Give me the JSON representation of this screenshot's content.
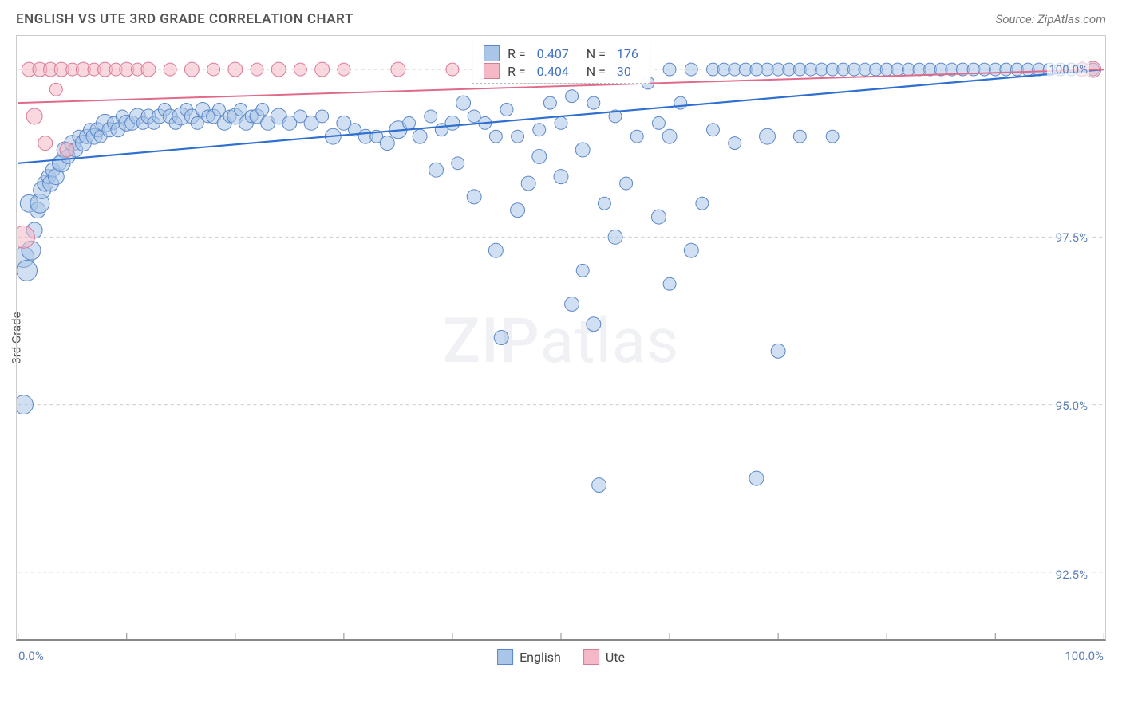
{
  "title": "ENGLISH VS UTE 3RD GRADE CORRELATION CHART",
  "source_label": "Source: ZipAtlas.com",
  "watermark": "ZIPatlas",
  "y_axis_title": "3rd Grade",
  "chart": {
    "type": "scatter",
    "xlim": [
      0,
      100
    ],
    "ylim": [
      91.5,
      100.5
    ],
    "y_ticks": [
      92.5,
      95.0,
      97.5,
      100.0
    ],
    "y_tick_labels": [
      "92.5%",
      "95.0%",
      "97.5%",
      "100.0%"
    ],
    "x_tick_positions": [
      0,
      10,
      20,
      30,
      40,
      50,
      60,
      70,
      80,
      90,
      100
    ],
    "x_axis_min_label": "0.0%",
    "x_axis_max_label": "100.0%",
    "background_color": "#ffffff",
    "grid_color": "#cccccc",
    "series": [
      {
        "name": "English",
        "fill": "#a9c5e8",
        "fill_opacity": 0.55,
        "stroke": "#5b87c7",
        "stroke_width": 1.0,
        "trend_color": "#2f6fd0",
        "trend_width": 2.2,
        "trend_y_start": 98.6,
        "trend_y_end": 100.0,
        "R": "0.407",
        "N": "176",
        "points": [
          {
            "x": 0.5,
            "y": 95.0,
            "r": 12
          },
          {
            "x": 0.5,
            "y": 97.2,
            "r": 13
          },
          {
            "x": 0.8,
            "y": 97.0,
            "r": 13
          },
          {
            "x": 1.0,
            "y": 98.0,
            "r": 11
          },
          {
            "x": 1.2,
            "y": 97.3,
            "r": 12
          },
          {
            "x": 1.5,
            "y": 97.6,
            "r": 10
          },
          {
            "x": 1.8,
            "y": 97.9,
            "r": 10
          },
          {
            "x": 2.0,
            "y": 98.0,
            "r": 12
          },
          {
            "x": 2.2,
            "y": 98.2,
            "r": 11
          },
          {
            "x": 2.5,
            "y": 98.3,
            "r": 10
          },
          {
            "x": 2.8,
            "y": 98.4,
            "r": 9
          },
          {
            "x": 3.0,
            "y": 98.3,
            "r": 10
          },
          {
            "x": 3.2,
            "y": 98.5,
            "r": 9
          },
          {
            "x": 3.5,
            "y": 98.4,
            "r": 10
          },
          {
            "x": 3.8,
            "y": 98.6,
            "r": 9
          },
          {
            "x": 4.0,
            "y": 98.6,
            "r": 11
          },
          {
            "x": 4.3,
            "y": 98.8,
            "r": 10
          },
          {
            "x": 4.6,
            "y": 98.7,
            "r": 9
          },
          {
            "x": 5.0,
            "y": 98.9,
            "r": 10
          },
          {
            "x": 5.3,
            "y": 98.8,
            "r": 9
          },
          {
            "x": 5.6,
            "y": 99.0,
            "r": 8
          },
          {
            "x": 6.0,
            "y": 98.9,
            "r": 10
          },
          {
            "x": 6.3,
            "y": 99.0,
            "r": 9
          },
          {
            "x": 6.6,
            "y": 99.1,
            "r": 8
          },
          {
            "x": 7.0,
            "y": 99.0,
            "r": 10
          },
          {
            "x": 7.3,
            "y": 99.1,
            "r": 9
          },
          {
            "x": 7.6,
            "y": 99.0,
            "r": 8
          },
          {
            "x": 8.0,
            "y": 99.2,
            "r": 11
          },
          {
            "x": 8.4,
            "y": 99.1,
            "r": 9
          },
          {
            "x": 8.8,
            "y": 99.2,
            "r": 8
          },
          {
            "x": 9.2,
            "y": 99.1,
            "r": 9
          },
          {
            "x": 9.6,
            "y": 99.3,
            "r": 8
          },
          {
            "x": 10.0,
            "y": 99.2,
            "r": 10
          },
          {
            "x": 10.5,
            "y": 99.2,
            "r": 9
          },
          {
            "x": 11.0,
            "y": 99.3,
            "r": 10
          },
          {
            "x": 11.5,
            "y": 99.2,
            "r": 8
          },
          {
            "x": 12.0,
            "y": 99.3,
            "r": 9
          },
          {
            "x": 12.5,
            "y": 99.2,
            "r": 8
          },
          {
            "x": 13.0,
            "y": 99.3,
            "r": 9
          },
          {
            "x": 13.5,
            "y": 99.4,
            "r": 8
          },
          {
            "x": 14.0,
            "y": 99.3,
            "r": 9
          },
          {
            "x": 14.5,
            "y": 99.2,
            "r": 8
          },
          {
            "x": 15.0,
            "y": 99.3,
            "r": 11
          },
          {
            "x": 15.5,
            "y": 99.4,
            "r": 8
          },
          {
            "x": 16.0,
            "y": 99.3,
            "r": 9
          },
          {
            "x": 16.5,
            "y": 99.2,
            "r": 8
          },
          {
            "x": 17.0,
            "y": 99.4,
            "r": 9
          },
          {
            "x": 17.5,
            "y": 99.3,
            "r": 8
          },
          {
            "x": 18.0,
            "y": 99.3,
            "r": 9
          },
          {
            "x": 18.5,
            "y": 99.4,
            "r": 8
          },
          {
            "x": 19.0,
            "y": 99.2,
            "r": 9
          },
          {
            "x": 19.5,
            "y": 99.3,
            "r": 8
          },
          {
            "x": 20.0,
            "y": 99.3,
            "r": 10
          },
          {
            "x": 20.5,
            "y": 99.4,
            "r": 8
          },
          {
            "x": 21.0,
            "y": 99.2,
            "r": 9
          },
          {
            "x": 21.5,
            "y": 99.3,
            "r": 8
          },
          {
            "x": 22.0,
            "y": 99.3,
            "r": 9
          },
          {
            "x": 22.5,
            "y": 99.4,
            "r": 8
          },
          {
            "x": 23.0,
            "y": 99.2,
            "r": 9
          },
          {
            "x": 24.0,
            "y": 99.3,
            "r": 10
          },
          {
            "x": 25.0,
            "y": 99.2,
            "r": 9
          },
          {
            "x": 26.0,
            "y": 99.3,
            "r": 8
          },
          {
            "x": 27.0,
            "y": 99.2,
            "r": 9
          },
          {
            "x": 28.0,
            "y": 99.3,
            "r": 8
          },
          {
            "x": 29.0,
            "y": 99.0,
            "r": 10
          },
          {
            "x": 30.0,
            "y": 99.2,
            "r": 9
          },
          {
            "x": 31.0,
            "y": 99.1,
            "r": 8
          },
          {
            "x": 32.0,
            "y": 99.0,
            "r": 9
          },
          {
            "x": 33.0,
            "y": 99.0,
            "r": 8
          },
          {
            "x": 34.0,
            "y": 98.9,
            "r": 9
          },
          {
            "x": 35.0,
            "y": 99.1,
            "r": 11
          },
          {
            "x": 36.0,
            "y": 99.2,
            "r": 8
          },
          {
            "x": 37.0,
            "y": 99.0,
            "r": 9
          },
          {
            "x": 38.0,
            "y": 99.3,
            "r": 8
          },
          {
            "x": 38.5,
            "y": 98.5,
            "r": 9
          },
          {
            "x": 39.0,
            "y": 99.1,
            "r": 8
          },
          {
            "x": 40.0,
            "y": 99.2,
            "r": 9
          },
          {
            "x": 40.5,
            "y": 98.6,
            "r": 8
          },
          {
            "x": 41.0,
            "y": 99.5,
            "r": 9
          },
          {
            "x": 42.0,
            "y": 99.3,
            "r": 8
          },
          {
            "x": 42.0,
            "y": 98.1,
            "r": 9
          },
          {
            "x": 43.0,
            "y": 99.2,
            "r": 8
          },
          {
            "x": 44.0,
            "y": 97.3,
            "r": 9
          },
          {
            "x": 44.0,
            "y": 99.0,
            "r": 8
          },
          {
            "x": 44.5,
            "y": 96.0,
            "r": 9
          },
          {
            "x": 45.0,
            "y": 99.4,
            "r": 8
          },
          {
            "x": 46.0,
            "y": 97.9,
            "r": 9
          },
          {
            "x": 46.0,
            "y": 99.0,
            "r": 8
          },
          {
            "x": 47.0,
            "y": 98.3,
            "r": 9
          },
          {
            "x": 48.0,
            "y": 99.1,
            "r": 8
          },
          {
            "x": 48.0,
            "y": 98.7,
            "r": 9
          },
          {
            "x": 49.0,
            "y": 99.5,
            "r": 8
          },
          {
            "x": 50.0,
            "y": 98.4,
            "r": 9
          },
          {
            "x": 50.0,
            "y": 99.2,
            "r": 8
          },
          {
            "x": 51.0,
            "y": 96.5,
            "r": 9
          },
          {
            "x": 51.0,
            "y": 99.6,
            "r": 8
          },
          {
            "x": 52.0,
            "y": 98.8,
            "r": 9
          },
          {
            "x": 52.0,
            "y": 97.0,
            "r": 8
          },
          {
            "x": 53.0,
            "y": 99.5,
            "r": 8
          },
          {
            "x": 53.0,
            "y": 96.2,
            "r": 9
          },
          {
            "x": 53.5,
            "y": 93.8,
            "r": 9
          },
          {
            "x": 54.0,
            "y": 98.0,
            "r": 8
          },
          {
            "x": 55.0,
            "y": 99.3,
            "r": 8
          },
          {
            "x": 55.0,
            "y": 97.5,
            "r": 9
          },
          {
            "x": 56.0,
            "y": 98.3,
            "r": 8
          },
          {
            "x": 57.0,
            "y": 99.0,
            "r": 8
          },
          {
            "x": 58.0,
            "y": 99.8,
            "r": 8
          },
          {
            "x": 59.0,
            "y": 99.2,
            "r": 8
          },
          {
            "x": 59.0,
            "y": 97.8,
            "r": 9
          },
          {
            "x": 60.0,
            "y": 100.0,
            "r": 8
          },
          {
            "x": 60.0,
            "y": 99.0,
            "r": 9
          },
          {
            "x": 60.0,
            "y": 96.8,
            "r": 8
          },
          {
            "x": 61.0,
            "y": 99.5,
            "r": 8
          },
          {
            "x": 62.0,
            "y": 97.3,
            "r": 9
          },
          {
            "x": 62.0,
            "y": 100.0,
            "r": 8
          },
          {
            "x": 63.0,
            "y": 98.0,
            "r": 8
          },
          {
            "x": 64.0,
            "y": 100.0,
            "r": 8
          },
          {
            "x": 64.0,
            "y": 99.1,
            "r": 8
          },
          {
            "x": 65.0,
            "y": 100.0,
            "r": 8
          },
          {
            "x": 66.0,
            "y": 100.0,
            "r": 8
          },
          {
            "x": 66.0,
            "y": 98.9,
            "r": 8
          },
          {
            "x": 67.0,
            "y": 100.0,
            "r": 8
          },
          {
            "x": 68.0,
            "y": 100.0,
            "r": 8
          },
          {
            "x": 68.0,
            "y": 93.9,
            "r": 9
          },
          {
            "x": 69.0,
            "y": 100.0,
            "r": 8
          },
          {
            "x": 69.0,
            "y": 99.0,
            "r": 10
          },
          {
            "x": 70.0,
            "y": 100.0,
            "r": 8
          },
          {
            "x": 70.0,
            "y": 95.8,
            "r": 9
          },
          {
            "x": 71.0,
            "y": 100.0,
            "r": 8
          },
          {
            "x": 72.0,
            "y": 100.0,
            "r": 8
          },
          {
            "x": 72.0,
            "y": 99.0,
            "r": 8
          },
          {
            "x": 73.0,
            "y": 100.0,
            "r": 8
          },
          {
            "x": 74.0,
            "y": 100.0,
            "r": 8
          },
          {
            "x": 75.0,
            "y": 100.0,
            "r": 8
          },
          {
            "x": 75.0,
            "y": 99.0,
            "r": 8
          },
          {
            "x": 76.0,
            "y": 100.0,
            "r": 8
          },
          {
            "x": 77.0,
            "y": 100.0,
            "r": 8
          },
          {
            "x": 78.0,
            "y": 100.0,
            "r": 8
          },
          {
            "x": 79.0,
            "y": 100.0,
            "r": 8
          },
          {
            "x": 80.0,
            "y": 100.0,
            "r": 8
          },
          {
            "x": 81.0,
            "y": 100.0,
            "r": 8
          },
          {
            "x": 82.0,
            "y": 100.0,
            "r": 8
          },
          {
            "x": 83.0,
            "y": 100.0,
            "r": 8
          },
          {
            "x": 84.0,
            "y": 100.0,
            "r": 8
          },
          {
            "x": 85.0,
            "y": 100.0,
            "r": 8
          },
          {
            "x": 86.0,
            "y": 100.0,
            "r": 8
          },
          {
            "x": 87.0,
            "y": 100.0,
            "r": 8
          },
          {
            "x": 88.0,
            "y": 100.0,
            "r": 8
          },
          {
            "x": 89.0,
            "y": 100.0,
            "r": 8
          },
          {
            "x": 90.0,
            "y": 100.0,
            "r": 8
          },
          {
            "x": 91.0,
            "y": 100.0,
            "r": 8
          },
          {
            "x": 92.0,
            "y": 100.0,
            "r": 8
          },
          {
            "x": 93.0,
            "y": 100.0,
            "r": 8
          },
          {
            "x": 94.0,
            "y": 100.0,
            "r": 8
          },
          {
            "x": 95.0,
            "y": 100.0,
            "r": 8
          },
          {
            "x": 96.0,
            "y": 100.0,
            "r": 8
          },
          {
            "x": 97.0,
            "y": 100.0,
            "r": 8
          },
          {
            "x": 98.0,
            "y": 100.0,
            "r": 8
          },
          {
            "x": 99.0,
            "y": 100.0,
            "r": 8
          }
        ]
      },
      {
        "name": "Ute",
        "fill": "#f5b8c6",
        "fill_opacity": 0.55,
        "stroke": "#d97a95",
        "stroke_width": 1.0,
        "trend_color": "#e06a8a",
        "trend_width": 2.0,
        "trend_y_start": 99.5,
        "trend_y_end": 100.0,
        "R": "0.404",
        "N": "30",
        "points": [
          {
            "x": 0.5,
            "y": 97.5,
            "r": 14
          },
          {
            "x": 1.0,
            "y": 100.0,
            "r": 9
          },
          {
            "x": 1.5,
            "y": 99.3,
            "r": 10
          },
          {
            "x": 2.0,
            "y": 100.0,
            "r": 9
          },
          {
            "x": 2.5,
            "y": 98.9,
            "r": 9
          },
          {
            "x": 3.0,
            "y": 100.0,
            "r": 9
          },
          {
            "x": 3.5,
            "y": 99.7,
            "r": 8
          },
          {
            "x": 4.0,
            "y": 100.0,
            "r": 9
          },
          {
            "x": 4.5,
            "y": 98.8,
            "r": 9
          },
          {
            "x": 5.0,
            "y": 100.0,
            "r": 8
          },
          {
            "x": 6.0,
            "y": 100.0,
            "r": 9
          },
          {
            "x": 7.0,
            "y": 100.0,
            "r": 8
          },
          {
            "x": 8.0,
            "y": 100.0,
            "r": 9
          },
          {
            "x": 9.0,
            "y": 100.0,
            "r": 8
          },
          {
            "x": 10.0,
            "y": 100.0,
            "r": 9
          },
          {
            "x": 11.0,
            "y": 100.0,
            "r": 8
          },
          {
            "x": 12.0,
            "y": 100.0,
            "r": 9
          },
          {
            "x": 14.0,
            "y": 100.0,
            "r": 8
          },
          {
            "x": 16.0,
            "y": 100.0,
            "r": 9
          },
          {
            "x": 18.0,
            "y": 100.0,
            "r": 8
          },
          {
            "x": 20.0,
            "y": 100.0,
            "r": 9
          },
          {
            "x": 22.0,
            "y": 100.0,
            "r": 8
          },
          {
            "x": 24.0,
            "y": 100.0,
            "r": 9
          },
          {
            "x": 26.0,
            "y": 100.0,
            "r": 8
          },
          {
            "x": 28.0,
            "y": 100.0,
            "r": 9
          },
          {
            "x": 30.0,
            "y": 100.0,
            "r": 8
          },
          {
            "x": 35.0,
            "y": 100.0,
            "r": 9
          },
          {
            "x": 40.0,
            "y": 100.0,
            "r": 8
          },
          {
            "x": 98.0,
            "y": 100.0,
            "r": 9
          },
          {
            "x": 99.0,
            "y": 100.0,
            "r": 10
          }
        ]
      }
    ],
    "correlation_legend": {
      "row_template": {
        "r_label": "R =",
        "n_label": "N ="
      }
    },
    "bottom_legend": [
      {
        "label": "English",
        "fill": "#a9c5e8",
        "stroke": "#5b87c7"
      },
      {
        "label": "Ute",
        "fill": "#f5b8c6",
        "stroke": "#d97a95"
      }
    ]
  }
}
